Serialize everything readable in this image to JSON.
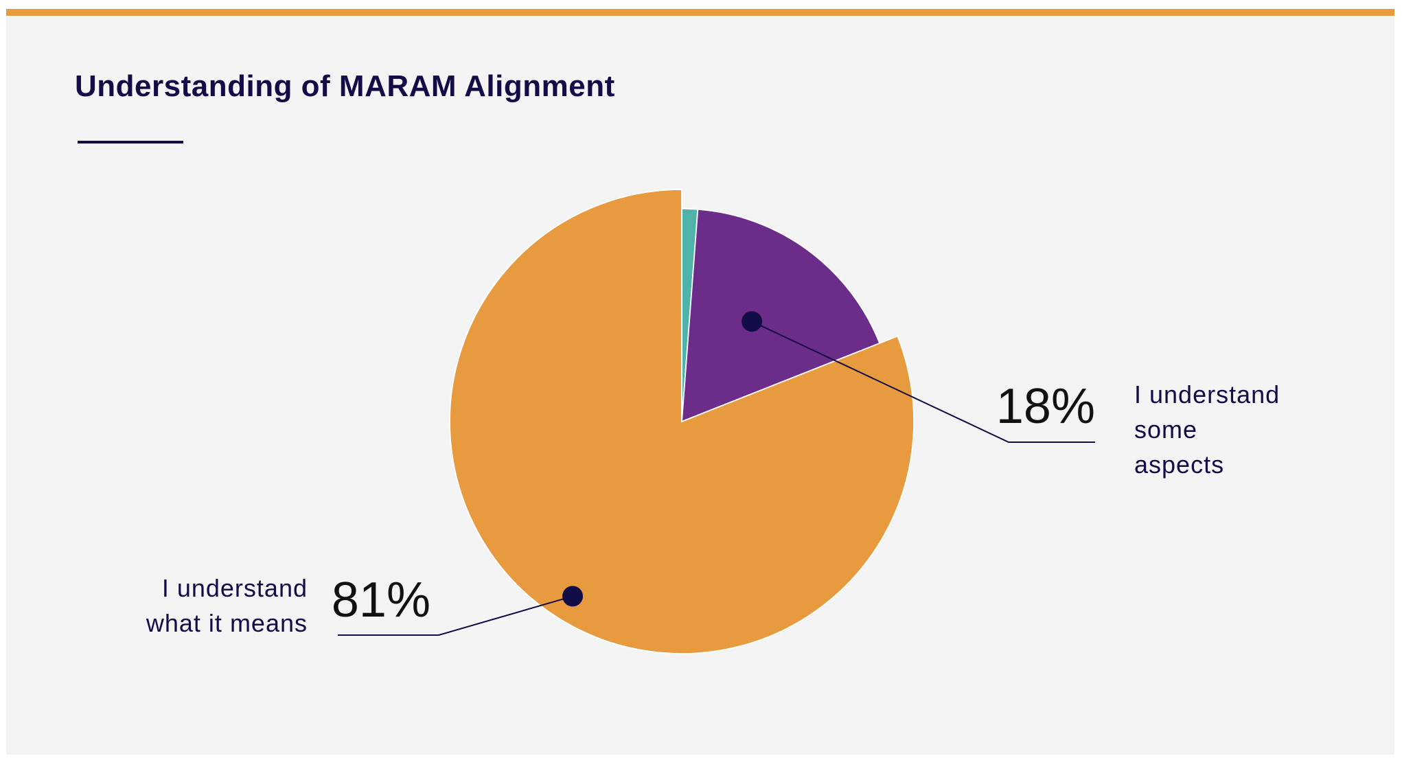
{
  "colors": {
    "accent_bar": "#e89a3f",
    "background": "#f4f4f4",
    "title": "#120c47",
    "leader": "#120c47",
    "percent_text": "#111111"
  },
  "chart_data": {
    "type": "pie",
    "title": "Understanding of MARAM Alignment",
    "start_angle_deg": 0,
    "direction": "clockwise",
    "slices": [
      {
        "label": "",
        "value": 1.2,
        "percent_label": "",
        "color": "#4fb3a9",
        "exploded": false,
        "callout": null
      },
      {
        "label": "I understand some aspects",
        "value": 17.8,
        "percent_label": "18%",
        "color": "#6b2d89",
        "exploded": false,
        "callout": {
          "side": "right",
          "label_lines": [
            "I understand",
            "some",
            "aspects"
          ]
        }
      },
      {
        "label": "I understand what it means",
        "value": 81,
        "percent_label": "81%",
        "color": "#e89a3f",
        "exploded": true,
        "callout": {
          "side": "left",
          "label_lines": [
            "I understand",
            "what it means"
          ]
        }
      }
    ]
  }
}
